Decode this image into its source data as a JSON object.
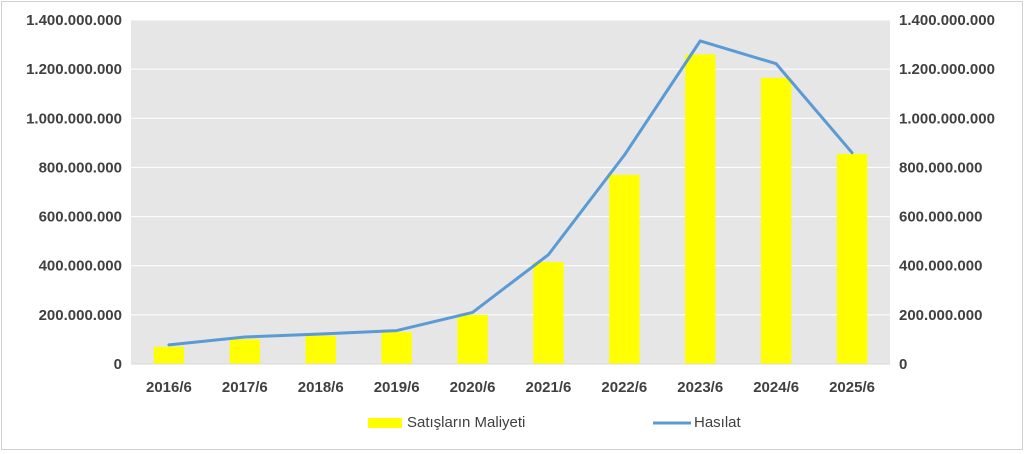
{
  "chart_data": {
    "type": "bar",
    "categories": [
      "2016/6",
      "2017/6",
      "2018/6",
      "2019/6",
      "2020/6",
      "2021/6",
      "2022/6",
      "2023/6",
      "2024/6",
      "2025/6"
    ],
    "series": [
      {
        "name": "Satışların Maliyeti",
        "type": "bar",
        "axis": "left",
        "color": "#ffff00",
        "values": [
          70000000,
          100000000,
          115000000,
          130000000,
          200000000,
          415000000,
          770000000,
          1260000000,
          1165000000,
          855000000
        ]
      },
      {
        "name": "Hasılat",
        "type": "line",
        "axis": "right",
        "color": "#5b9bd5",
        "values": [
          78000000,
          110000000,
          122000000,
          136000000,
          210000000,
          445000000,
          850000000,
          1315000000,
          1222000000,
          860000000
        ]
      }
    ],
    "yticks": [
      "0",
      "200.000.000",
      "400.000.000",
      "600.000.000",
      "800.000.000",
      "1.000.000.000",
      "1.200.000.000",
      "1.400.000.000"
    ],
    "ylim": [
      0,
      1400000000
    ],
    "y2lim": [
      0,
      1400000000
    ],
    "grid": true,
    "legend_position": "bottom",
    "plot_background": "#e6e6e6",
    "title": "",
    "xlabel": "",
    "ylabel": ""
  }
}
